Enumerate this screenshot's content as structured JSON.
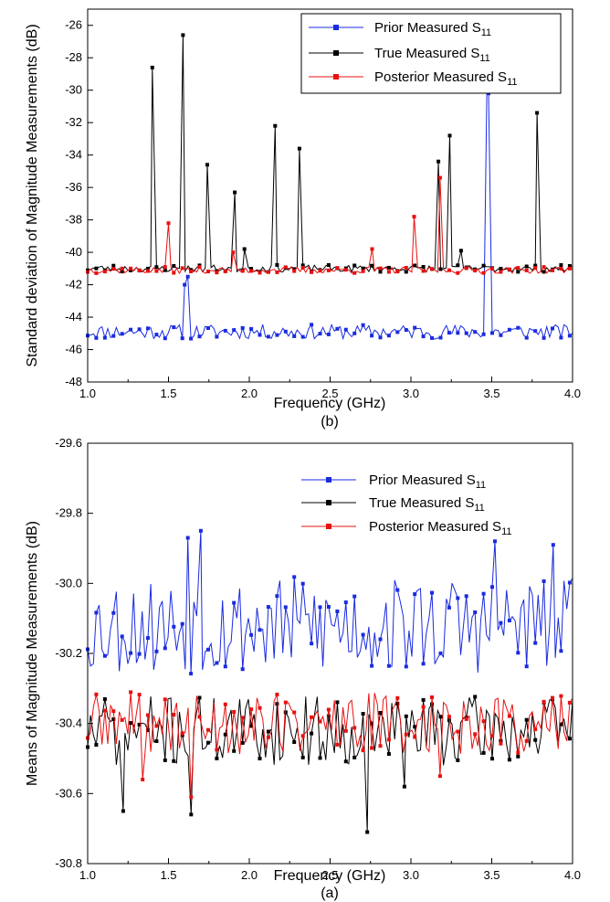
{
  "colors": {
    "prior": "#1a2be0",
    "true": "#000000",
    "posterior": "#e81010"
  },
  "chart_data": [
    {
      "type": "line",
      "panel": "top",
      "caption": "(b)",
      "xlabel": "Frequency (GHz)",
      "ylabel": "Standard deviation of Magnitude Measurements (dB)",
      "xlim": [
        1.0,
        4.0
      ],
      "ylim": [
        -48,
        -25
      ],
      "xticks": [
        "1.0",
        "1.5",
        "2.0",
        "2.5",
        "3.0",
        "3.5",
        "4.0"
      ],
      "yticks": [
        "-48",
        "-46",
        "-44",
        "-42",
        "-40",
        "-38",
        "-36",
        "-34",
        "-32",
        "-30",
        "-28",
        "-26"
      ],
      "legend_position": "top-right",
      "grid": false,
      "series": [
        {
          "name": "Prior Measured S11",
          "label_main": "Prior Measured S",
          "label_sub": "11",
          "color": "#1a2be0",
          "baseline": -44.9,
          "noise": 0.45,
          "seed": 11,
          "peaks": [
            [
              1.6,
              -42.0
            ],
            [
              1.62,
              -41.5
            ],
            [
              3.47,
              -29.8
            ],
            [
              3.48,
              -30.2
            ]
          ]
        },
        {
          "name": "True Measured S11",
          "label_main": "True Measured S",
          "label_sub": "11",
          "color": "#000000",
          "baseline": -41.0,
          "noise": 0.22,
          "seed": 23,
          "peaks": [
            [
              1.4,
              -28.6
            ],
            [
              1.59,
              -26.6
            ],
            [
              1.74,
              -34.6
            ],
            [
              1.91,
              -36.3
            ],
            [
              1.97,
              -39.8
            ],
            [
              2.16,
              -32.2
            ],
            [
              2.31,
              -33.6
            ],
            [
              3.17,
              -34.4
            ],
            [
              3.24,
              -32.8
            ],
            [
              3.31,
              -39.9
            ],
            [
              3.78,
              -31.4
            ]
          ]
        },
        {
          "name": "Posterior Measured S11",
          "label_main": "Posterior Measured S",
          "label_sub": "11",
          "color": "#e81010",
          "baseline": -41.1,
          "noise": 0.2,
          "seed": 37,
          "peaks": [
            [
              1.5,
              -38.2
            ],
            [
              1.9,
              -40.0
            ],
            [
              2.76,
              -39.8
            ],
            [
              3.02,
              -37.8
            ],
            [
              3.18,
              -35.4
            ]
          ]
        }
      ]
    },
    {
      "type": "line",
      "panel": "bottom",
      "caption": "(a)",
      "xlabel": "Frequency (GHz)",
      "ylabel": "Means of Magnitude Measurements (dB)",
      "xlim": [
        1.0,
        4.0
      ],
      "ylim": [
        -30.8,
        -29.6
      ],
      "xticks": [
        "1.0",
        "1.5",
        "2.0",
        "2.5",
        "3.0",
        "3.5",
        "4.0"
      ],
      "yticks": [
        "-30.8",
        "-30.6",
        "-30.4",
        "-30.2",
        "-30.0",
        "-29.8",
        "-29.6"
      ],
      "legend_position": "top-right",
      "grid": false,
      "series": [
        {
          "name": "Prior Measured S11",
          "label_main": "Prior Measured S",
          "label_sub": "11",
          "color": "#1a2be0",
          "baseline": -30.12,
          "noise": 0.14,
          "seed": 53,
          "peaks": [
            [
              1.62,
              -29.87
            ],
            [
              1.7,
              -29.85
            ],
            [
              3.52,
              -29.88
            ],
            [
              3.88,
              -29.89
            ]
          ]
        },
        {
          "name": "True Measured S11",
          "label_main": "True Measured S",
          "label_sub": "11",
          "color": "#000000",
          "baseline": -30.42,
          "noise": 0.1,
          "seed": 71,
          "peaks": [
            [
              1.22,
              -30.65
            ],
            [
              1.64,
              -30.66
            ],
            [
              2.73,
              -30.71
            ],
            [
              2.96,
              -30.58
            ]
          ]
        },
        {
          "name": "Posterior Measured S11",
          "label_main": "Posterior Measured S",
          "label_sub": "11",
          "color": "#e81010",
          "baseline": -30.4,
          "noise": 0.09,
          "seed": 89,
          "peaks": [
            [
              1.34,
              -30.56
            ],
            [
              1.64,
              -30.61
            ],
            [
              3.18,
              -30.55
            ]
          ]
        }
      ]
    }
  ]
}
